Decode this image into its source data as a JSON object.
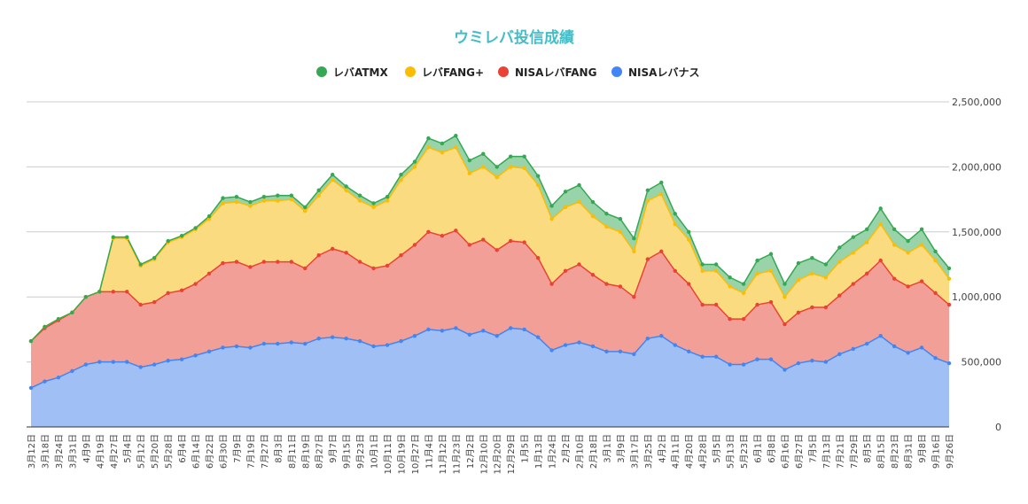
{
  "chart_data": {
    "type": "area",
    "stacked": true,
    "title": "ウミレバ投信成績",
    "title_color": "#46bdc6",
    "legend_position": "top",
    "grid": true,
    "xlabel": "",
    "ylabel": "",
    "ylim": [
      0,
      2500000
    ],
    "yticks": [
      0,
      500000,
      1000000,
      1500000,
      2000000,
      2500000
    ],
    "ytick_labels": [
      "0",
      "500,000",
      "1,000,000",
      "1,500,000",
      "2,000,000",
      "2,500,000"
    ],
    "categories": [
      "3月12日",
      "3月18日",
      "3月24日",
      "3月31日",
      "4月9日",
      "4月19日",
      "4月27日",
      "5月4日",
      "5月12日",
      "5月20日",
      "5月28日",
      "6月4日",
      "6月14日",
      "6月22日",
      "6月30日",
      "7月9日",
      "7月19日",
      "7月27日",
      "8月3日",
      "8月11日",
      "8月19日",
      "8月27日",
      "9月7日",
      "9月15日",
      "9月23日",
      "10月1日",
      "10月11日",
      "10月19日",
      "10月27日",
      "11月4日",
      "11月12日",
      "11月23日",
      "12月2日",
      "12月10日",
      "12月20日",
      "12月29日",
      "1月5日",
      "1月13日",
      "1月24日",
      "2月2日",
      "2月10日",
      "2月18日",
      "3月1日",
      "3月9日",
      "3月17日",
      "3月25日",
      "4月2日",
      "4月11日",
      "4月20日",
      "4月28日",
      "5月5日",
      "5月13日",
      "5月23日",
      "6月1日",
      "6月8日",
      "6月16日",
      "6月27日",
      "7月5日",
      "7月13日",
      "7月21日",
      "7月29日",
      "8月5日",
      "8月15日",
      "8月23日",
      "8月31日",
      "9月8日",
      "9月16日",
      "9月26日"
    ],
    "series": [
      {
        "name": "NISAレバナス",
        "color": "#4285f4",
        "fill": "#a0c0f5",
        "values": [
          300000,
          350000,
          380000,
          430000,
          480000,
          500000,
          500000,
          500000,
          460000,
          480000,
          510000,
          520000,
          550000,
          580000,
          610000,
          620000,
          610000,
          640000,
          640000,
          650000,
          640000,
          680000,
          690000,
          680000,
          660000,
          620000,
          630000,
          660000,
          700000,
          750000,
          740000,
          760000,
          710000,
          740000,
          700000,
          760000,
          750000,
          690000,
          590000,
          630000,
          650000,
          620000,
          580000,
          580000,
          560000,
          680000,
          700000,
          630000,
          580000,
          540000,
          540000,
          480000,
          480000,
          520000,
          520000,
          440000,
          490000,
          510000,
          500000,
          560000,
          600000,
          640000,
          700000,
          620000,
          570000,
          610000,
          530000,
          490000
        ]
      },
      {
        "name": "NISAレバFANG",
        "color": "#ea4335",
        "fill": "#f29f97",
        "values": [
          360000,
          410000,
          440000,
          450000,
          520000,
          540000,
          540000,
          540000,
          480000,
          480000,
          520000,
          530000,
          550000,
          600000,
          650000,
          650000,
          620000,
          630000,
          630000,
          620000,
          580000,
          640000,
          680000,
          660000,
          610000,
          600000,
          610000,
          660000,
          700000,
          750000,
          730000,
          750000,
          690000,
          700000,
          660000,
          670000,
          670000,
          610000,
          510000,
          570000,
          600000,
          550000,
          520000,
          500000,
          440000,
          610000,
          650000,
          570000,
          520000,
          400000,
          400000,
          350000,
          350000,
          420000,
          440000,
          350000,
          390000,
          410000,
          420000,
          450000,
          500000,
          540000,
          580000,
          520000,
          510000,
          510000,
          500000,
          450000
        ]
      },
      {
        "name": "レバFANG+",
        "color": "#fbbc04",
        "fill": "#fbdb80",
        "values": [
          0,
          10000,
          10000,
          0,
          0,
          0,
          410000,
          410000,
          300000,
          330000,
          390000,
          410000,
          420000,
          420000,
          460000,
          460000,
          470000,
          470000,
          470000,
          480000,
          440000,
          460000,
          530000,
          480000,
          470000,
          470000,
          500000,
          580000,
          600000,
          650000,
          640000,
          640000,
          550000,
          560000,
          560000,
          570000,
          570000,
          560000,
          500000,
          490000,
          480000,
          450000,
          440000,
          420000,
          350000,
          450000,
          440000,
          360000,
          340000,
          260000,
          260000,
          250000,
          200000,
          240000,
          240000,
          210000,
          250000,
          260000,
          230000,
          260000,
          240000,
          240000,
          280000,
          260000,
          260000,
          280000,
          250000,
          200000
        ]
      },
      {
        "name": "レバATMX",
        "color": "#34a853",
        "fill": "#99d3a9",
        "values": [
          0,
          0,
          0,
          0,
          0,
          0,
          10000,
          10000,
          10000,
          10000,
          10000,
          10000,
          10000,
          20000,
          40000,
          40000,
          30000,
          30000,
          40000,
          30000,
          30000,
          40000,
          40000,
          30000,
          40000,
          30000,
          30000,
          40000,
          40000,
          70000,
          70000,
          90000,
          100000,
          100000,
          80000,
          80000,
          90000,
          70000,
          100000,
          120000,
          130000,
          110000,
          100000,
          100000,
          100000,
          80000,
          90000,
          80000,
          60000,
          50000,
          50000,
          70000,
          70000,
          100000,
          130000,
          100000,
          130000,
          120000,
          100000,
          110000,
          120000,
          100000,
          120000,
          120000,
          90000,
          120000,
          70000,
          80000
        ]
      }
    ],
    "legend_order": [
      3,
      2,
      1,
      0
    ]
  }
}
